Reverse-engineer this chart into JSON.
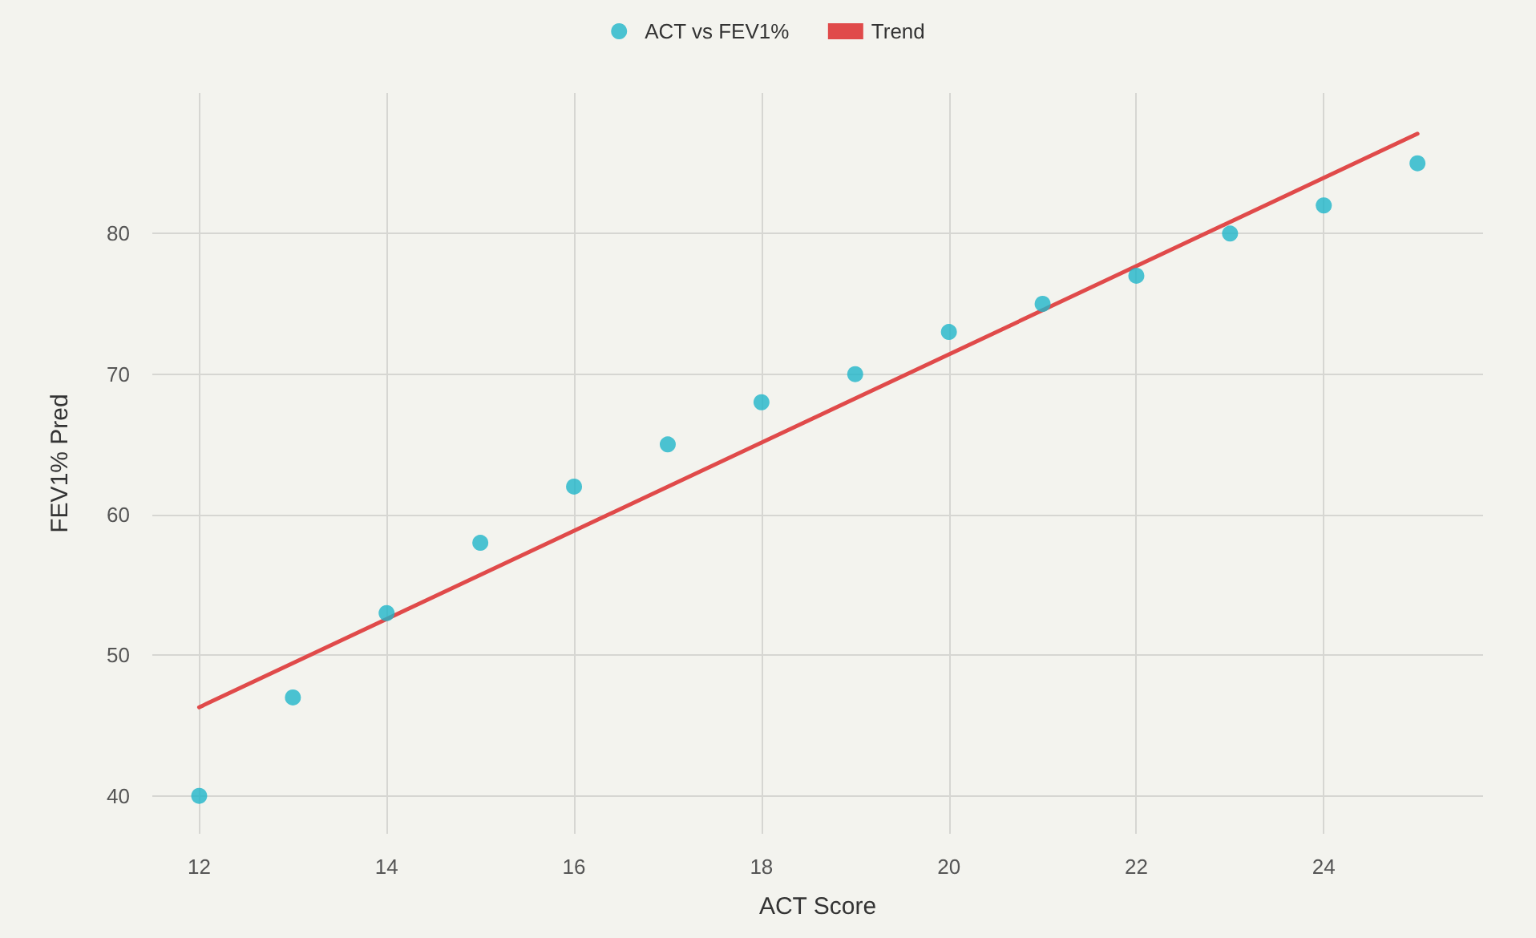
{
  "chart_data": {
    "type": "scatter",
    "xlabel": "ACT Score",
    "ylabel": "FEV1% Pred",
    "x": [
      12,
      13,
      14,
      15,
      16,
      17,
      18,
      19,
      20,
      21,
      22,
      23,
      24,
      25
    ],
    "series": [
      {
        "name": "ACT vs FEV1%",
        "color": "#1fb5c9",
        "marker": "circle",
        "values": [
          40,
          47,
          53,
          58,
          62,
          65,
          68,
          70,
          73,
          75,
          77,
          80,
          82,
          85
        ]
      },
      {
        "name": "Trend",
        "type": "line",
        "color": "#e04a4a",
        "x": [
          12,
          25
        ],
        "values": [
          46.3,
          87.1
        ],
        "marker": "none",
        "line_style": "solid"
      }
    ],
    "xlim": [
      11.5,
      25.7
    ],
    "ylim": [
      37.3,
      90
    ],
    "xticks": [
      12,
      14,
      16,
      18,
      20,
      22,
      24
    ],
    "yticks": [
      40,
      50,
      60,
      70,
      80
    ],
    "grid": true,
    "legend": "top"
  }
}
